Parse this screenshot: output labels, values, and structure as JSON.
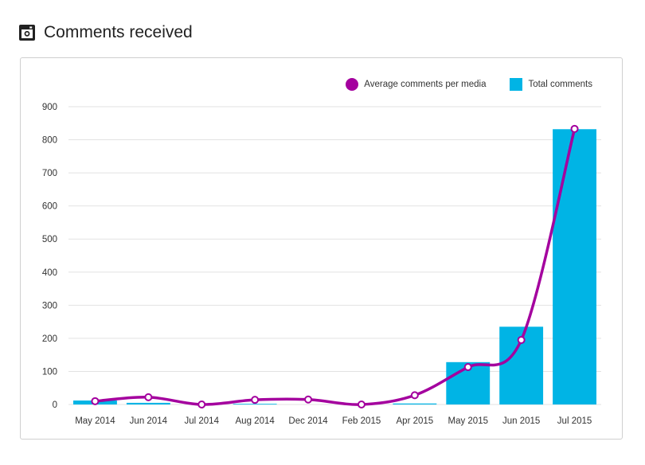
{
  "header": {
    "title": "Comments received",
    "icon": "instagram-icon"
  },
  "legend": {
    "line_label": "Average comments per media",
    "bar_label": "Total comments"
  },
  "colors": {
    "bar": "#00b4e5",
    "line": "#a4009e",
    "grid": "#e2e2e2",
    "marker_fill": "#ffffff"
  },
  "chart_data": {
    "type": "bar",
    "categories": [
      "May 2014",
      "Jun 2014",
      "Jul 2014",
      "Aug 2014",
      "Dec 2014",
      "Feb 2015",
      "Apr 2015",
      "May 2015",
      "Jun 2015",
      "Jul 2015"
    ],
    "series": [
      {
        "name": "Total comments",
        "type": "bar",
        "values": [
          12,
          5,
          0,
          2,
          0,
          0,
          3,
          128,
          235,
          832
        ]
      },
      {
        "name": "Average comments per media",
        "type": "line",
        "values": [
          10,
          22,
          0,
          14,
          15,
          0,
          28,
          113,
          195,
          833
        ]
      }
    ],
    "ylim": [
      0,
      900
    ],
    "yticks": [
      0,
      100,
      200,
      300,
      400,
      500,
      600,
      700,
      800,
      900
    ],
    "grid": true,
    "legend_position": "top-right",
    "title": "",
    "xlabel": "",
    "ylabel": ""
  }
}
